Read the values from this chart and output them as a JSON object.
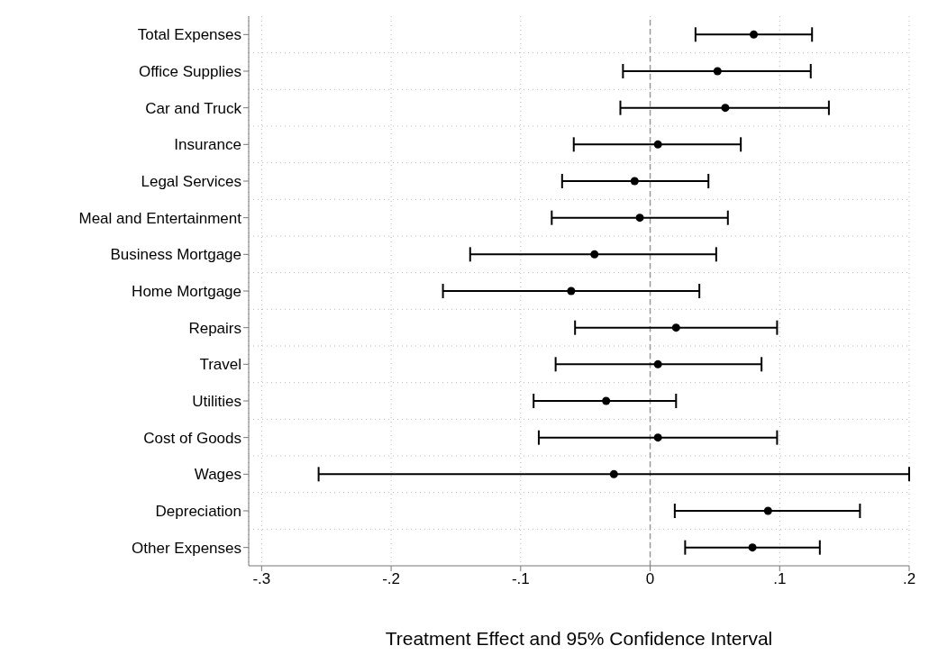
{
  "chart_data": {
    "type": "scatter",
    "orientation": "horizontal",
    "xlabel": "Treatment Effect and 95% Confidence Interval",
    "categories": [
      "Total Expenses",
      "Office Supplies",
      "Car and Truck",
      "Insurance",
      "Legal Services",
      "Meal and Entertainment",
      "Business Mortgage",
      "Home Mortgage",
      "Repairs",
      "Travel",
      "Utilities",
      "Cost of Goods",
      "Wages",
      "Depreciation",
      "Other Expenses"
    ],
    "series": [
      {
        "color": "#000000",
        "values": [
          0.08,
          0.052,
          0.058,
          0.006,
          -0.012,
          -0.008,
          -0.043,
          -0.061,
          0.02,
          0.006,
          -0.034,
          0.006,
          -0.028,
          0.091,
          0.079
        ],
        "errors": [
          [
            0.035,
            0.125
          ],
          [
            -0.021,
            0.124
          ],
          [
            -0.023,
            0.138
          ],
          [
            -0.059,
            0.07
          ],
          [
            -0.068,
            0.045
          ],
          [
            -0.076,
            0.06
          ],
          [
            -0.139,
            0.051
          ],
          [
            -0.16,
            0.038
          ],
          [
            -0.058,
            0.098
          ],
          [
            -0.073,
            0.086
          ],
          [
            -0.09,
            0.02
          ],
          [
            -0.086,
            0.098
          ],
          [
            -0.256,
            0.2
          ],
          [
            0.019,
            0.162
          ],
          [
            0.027,
            0.131
          ]
        ]
      }
    ],
    "xlim": [
      -0.31,
      0.2
    ],
    "xticks": [
      {
        "value": -0.3,
        "label": "-.3"
      },
      {
        "value": -0.2,
        "label": "-.2"
      },
      {
        "value": -0.1,
        "label": "-.1"
      },
      0,
      {
        "value": 0.1,
        "label": ".1"
      },
      {
        "value": 0.2,
        "label": ".2"
      }
    ],
    "ref_lines": [
      {
        "axis": "x",
        "value": 0,
        "color": "#999999",
        "line_style": "dashed"
      }
    ],
    "grid": true,
    "marker": "circle",
    "legend": false
  }
}
